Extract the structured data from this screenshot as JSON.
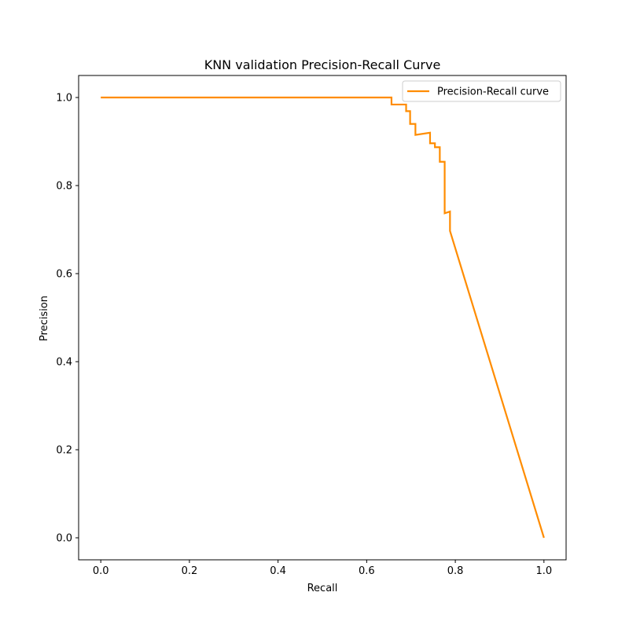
{
  "chart_data": {
    "type": "line",
    "title": "KNN validation Precision-Recall Curve",
    "xlabel": "Recall",
    "ylabel": "Precision",
    "xlim": [
      -0.05,
      1.05
    ],
    "ylim": [
      -0.05,
      1.05
    ],
    "xticks": [
      0.0,
      0.2,
      0.4,
      0.6,
      0.8,
      1.0
    ],
    "xtick_labels": [
      "0.0",
      "0.2",
      "0.4",
      "0.6",
      "0.8",
      "1.0"
    ],
    "yticks": [
      0.0,
      0.2,
      0.4,
      0.6,
      0.8,
      1.0
    ],
    "ytick_labels": [
      "0.0",
      "0.2",
      "0.4",
      "0.6",
      "0.8",
      "1.0"
    ],
    "grid": false,
    "legend_position": "upper-right",
    "series": [
      {
        "name": "Precision-Recall curve",
        "color": "#ff8c00",
        "x": [
          0.0,
          0.656,
          0.656,
          0.689,
          0.689,
          0.698,
          0.698,
          0.71,
          0.71,
          0.743,
          0.743,
          0.754,
          0.754,
          0.765,
          0.765,
          0.776,
          0.776,
          0.788,
          0.788,
          1.0
        ],
        "y": [
          1.0,
          1.0,
          0.984,
          0.984,
          0.969,
          0.969,
          0.94,
          0.94,
          0.915,
          0.92,
          0.896,
          0.896,
          0.887,
          0.887,
          0.854,
          0.854,
          0.737,
          0.741,
          0.697,
          0.0
        ]
      }
    ]
  }
}
